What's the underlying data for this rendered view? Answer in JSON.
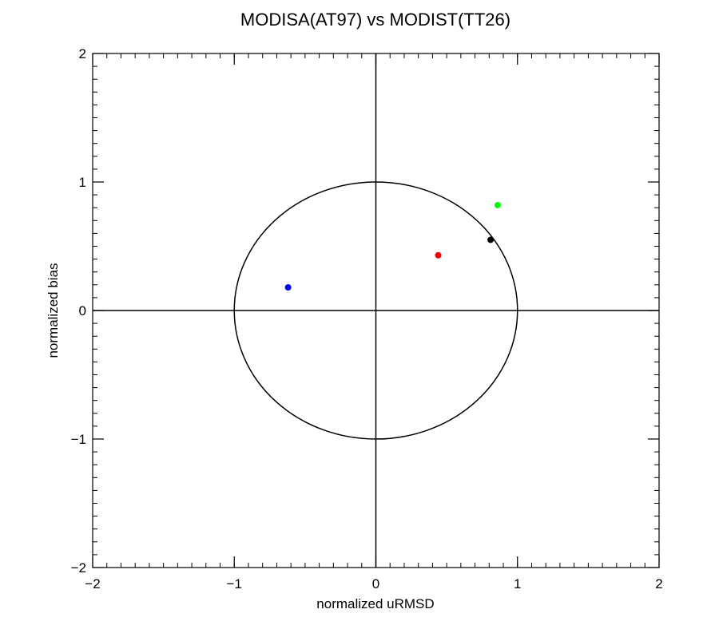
{
  "chart_data": {
    "type": "scatter",
    "title": "MODISA(AT97) vs MODIST(TT26)",
    "xlabel": "normalized uRMSD",
    "ylabel": "normalized bias",
    "xlim": [
      -2,
      2
    ],
    "ylim": [
      -2,
      2
    ],
    "xticks": [
      -2,
      -1,
      0,
      1,
      2
    ],
    "yticks": [
      -2,
      -1,
      0,
      1,
      2
    ],
    "xtick_labels": [
      "−2",
      "−1",
      "0",
      "1",
      "2"
    ],
    "ytick_labels": [
      "−2",
      "−1",
      "0",
      "1",
      "2"
    ],
    "minor_tick_step": 0.1,
    "grid": false,
    "reference_circle_radius": 1,
    "zero_lines": true,
    "points": [
      {
        "x": -0.62,
        "y": 0.18,
        "color": "#0000ff"
      },
      {
        "x": 0.44,
        "y": 0.43,
        "color": "#ff0000"
      },
      {
        "x": 0.81,
        "y": 0.55,
        "color": "#000000"
      },
      {
        "x": 0.86,
        "y": 0.82,
        "color": "#00ff00"
      }
    ]
  }
}
